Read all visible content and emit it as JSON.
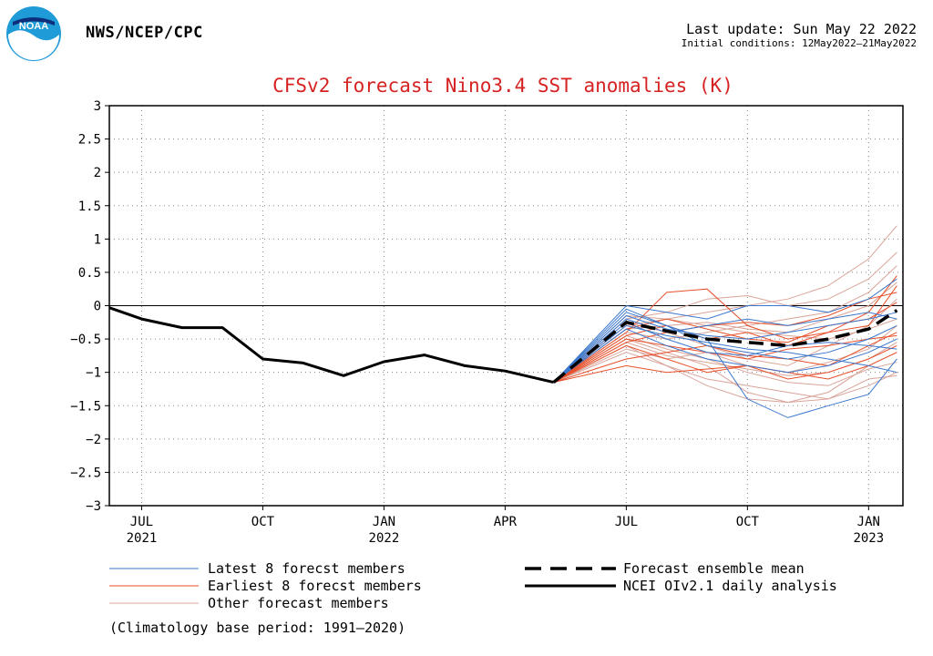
{
  "header": {
    "agency": "NWS/NCEP/CPC",
    "last_update": "Last update: Sun May 22 2022",
    "initial_conditions": "Initial conditions: 12May2022–21May2022",
    "logo_text": "NOAA"
  },
  "chart_data": {
    "type": "line",
    "title": "CFSv2 forecast Nino3.4 SST anomalies (K)",
    "xlabel": "",
    "ylabel": "",
    "ylim": [
      -3,
      3
    ],
    "yticks": [
      3,
      2.5,
      2,
      1.5,
      1,
      0.5,
      0,
      -0.5,
      -1,
      -1.5,
      -2,
      -2.5,
      -3
    ],
    "ytick_labels": [
      "3",
      "2.5",
      "2",
      "1.5",
      "1",
      "0.5",
      "0",
      "−0.5",
      "−1",
      "−1.5",
      "−2",
      "−2.5",
      "−3"
    ],
    "xlim": [
      -0.3,
      19.35
    ],
    "xticks": [
      {
        "x": 0.5,
        "label": "JUL",
        "year": "2021"
      },
      {
        "x": 3.5,
        "label": "OCT",
        "year": ""
      },
      {
        "x": 6.5,
        "label": "JAN",
        "year": "2022"
      },
      {
        "x": 9.5,
        "label": "APR",
        "year": ""
      },
      {
        "x": 12.5,
        "label": "JUL",
        "year": ""
      },
      {
        "x": 15.5,
        "label": "OCT",
        "year": ""
      },
      {
        "x": 18.5,
        "label": "JAN",
        "year": "2023"
      }
    ],
    "x_units": "months since start of June 2021 (0.5 = mid-month)",
    "zero_line": true,
    "grid": "dotted",
    "colors": {
      "latest": "#3a77cc",
      "earliest": "#e8502a",
      "other": "#d9a49a",
      "mean": "#000000",
      "observed": "#000000"
    },
    "observed": {
      "name": "NCEI OIv2.1 daily analysis",
      "x": [
        -0.3,
        0.5,
        1.5,
        2.5,
        3.5,
        4.5,
        5.5,
        6.5,
        7.5,
        8.5,
        9.5,
        10.7
      ],
      "y": [
        -0.03,
        -0.2,
        -0.33,
        -0.33,
        -0.8,
        -0.86,
        -1.05,
        -0.84,
        -0.74,
        -0.9,
        -0.98,
        -1.15
      ]
    },
    "ensemble_mean": {
      "name": "Forecast ensemble mean",
      "x": [
        10.7,
        12.5,
        13.5,
        14.5,
        15.5,
        16.5,
        17.5,
        18.5,
        19.2
      ],
      "y": [
        -1.15,
        -0.25,
        -0.38,
        -0.5,
        -0.55,
        -0.6,
        -0.5,
        -0.35,
        -0.07
      ]
    },
    "members": {
      "x": [
        10.7,
        12.5,
        13.5,
        14.5,
        15.5,
        16.5,
        17.5,
        18.5,
        19.2
      ],
      "latest": [
        [
          -1.15,
          0.0,
          -0.1,
          -0.2,
          0.0,
          0.0,
          -0.1,
          0.1,
          0.4
        ],
        [
          -1.15,
          -0.1,
          -0.3,
          -0.5,
          -1.4,
          -1.68,
          -1.5,
          -1.33,
          -0.8
        ],
        [
          -1.15,
          -0.2,
          -0.4,
          -0.3,
          -0.2,
          -0.3,
          -0.2,
          -0.1,
          -0.2
        ],
        [
          -1.15,
          -0.35,
          -0.6,
          -0.8,
          -0.9,
          -1.0,
          -0.9,
          -0.7,
          -0.5
        ],
        [
          -1.15,
          -0.05,
          -0.3,
          -0.6,
          -0.7,
          -0.8,
          -0.7,
          -0.5,
          -0.3
        ],
        [
          -1.15,
          -0.25,
          -0.5,
          -0.7,
          -0.75,
          -0.6,
          -0.55,
          -0.6,
          -0.65
        ],
        [
          -1.15,
          -0.15,
          -0.35,
          -0.45,
          -0.5,
          -0.4,
          -0.3,
          -0.2,
          -0.1
        ],
        [
          -1.15,
          -0.3,
          -0.45,
          -0.55,
          -0.65,
          -0.7,
          -0.8,
          -0.9,
          -1.0
        ]
      ],
      "earliest": [
        [
          -1.15,
          -0.4,
          0.2,
          0.25,
          -0.3,
          -0.5,
          -0.4,
          -0.1,
          0.45
        ],
        [
          -1.15,
          -0.6,
          -0.8,
          -1.0,
          -0.9,
          -1.1,
          -1.0,
          -0.8,
          -0.6
        ],
        [
          -1.15,
          -0.45,
          -0.3,
          -0.5,
          -0.4,
          -0.6,
          -0.4,
          -0.3,
          0.3
        ],
        [
          -1.15,
          -0.8,
          -0.7,
          -0.6,
          -0.75,
          -0.8,
          -0.9,
          -0.6,
          -0.4
        ],
        [
          -1.15,
          -0.35,
          -0.2,
          -0.35,
          -0.5,
          -0.55,
          -0.3,
          -0.2,
          0.05
        ],
        [
          -1.15,
          -0.9,
          -1.0,
          -0.95,
          -0.9,
          -1.0,
          -1.1,
          -0.9,
          -0.7
        ],
        [
          -1.15,
          -0.5,
          -0.6,
          -0.7,
          -0.8,
          -0.65,
          -0.6,
          -0.5,
          -0.45
        ],
        [
          -1.15,
          -0.55,
          -0.4,
          -0.3,
          -0.25,
          -0.3,
          -0.15,
          0.1,
          0.2
        ]
      ],
      "other": [
        [
          -1.15,
          -0.3,
          -0.2,
          -0.1,
          0.0,
          0.1,
          0.3,
          0.7,
          1.2
        ],
        [
          -1.15,
          -0.5,
          -0.7,
          -0.9,
          -1.3,
          -1.45,
          -1.4,
          -1.2,
          -1.0
        ],
        [
          -1.15,
          -0.2,
          -0.1,
          0.1,
          0.15,
          0.0,
          0.1,
          0.4,
          0.8
        ],
        [
          -1.15,
          -0.6,
          -0.9,
          -1.1,
          -1.2,
          -1.3,
          -1.4,
          -1.1,
          -1.05
        ],
        [
          -1.15,
          -0.4,
          -0.5,
          -0.4,
          -0.3,
          -0.2,
          -0.1,
          0.2,
          0.6
        ],
        [
          -1.15,
          -0.7,
          -0.9,
          -1.2,
          -1.4,
          -1.45,
          -1.3,
          -0.9,
          -0.7
        ],
        [
          -1.15,
          -0.25,
          -0.4,
          -0.6,
          -0.8,
          -0.9,
          -0.6,
          -0.3,
          0.1
        ],
        [
          -1.15,
          -0.45,
          -0.65,
          -0.8,
          -1.0,
          -1.15,
          -1.2,
          -0.95,
          -0.85
        ],
        [
          -1.15,
          -0.35,
          -0.3,
          -0.25,
          -0.35,
          -0.4,
          -0.2,
          0.0,
          0.35
        ],
        [
          -1.15,
          -0.55,
          -0.75,
          -0.85,
          -0.95,
          -1.05,
          -1.0,
          -0.8,
          -0.55
        ],
        [
          -1.15,
          -0.15,
          -0.2,
          -0.3,
          -0.4,
          -0.45,
          -0.5,
          -0.35,
          -0.2
        ],
        [
          -1.15,
          -0.65,
          -0.8,
          -0.7,
          -0.9,
          -1.0,
          -0.85,
          -0.65,
          -0.3
        ]
      ]
    },
    "legend": [
      {
        "label": "Latest 8 forecst members",
        "style": "latest"
      },
      {
        "label": "Earliest 8 forecst members",
        "style": "earliest"
      },
      {
        "label": "Other forecast members",
        "style": "other"
      },
      {
        "label": "Forecast ensemble mean",
        "style": "mean"
      },
      {
        "label": "NCEI OIv2.1 daily analysis",
        "style": "observed"
      }
    ],
    "note": "(Climatology base period: 1991–2020)"
  }
}
